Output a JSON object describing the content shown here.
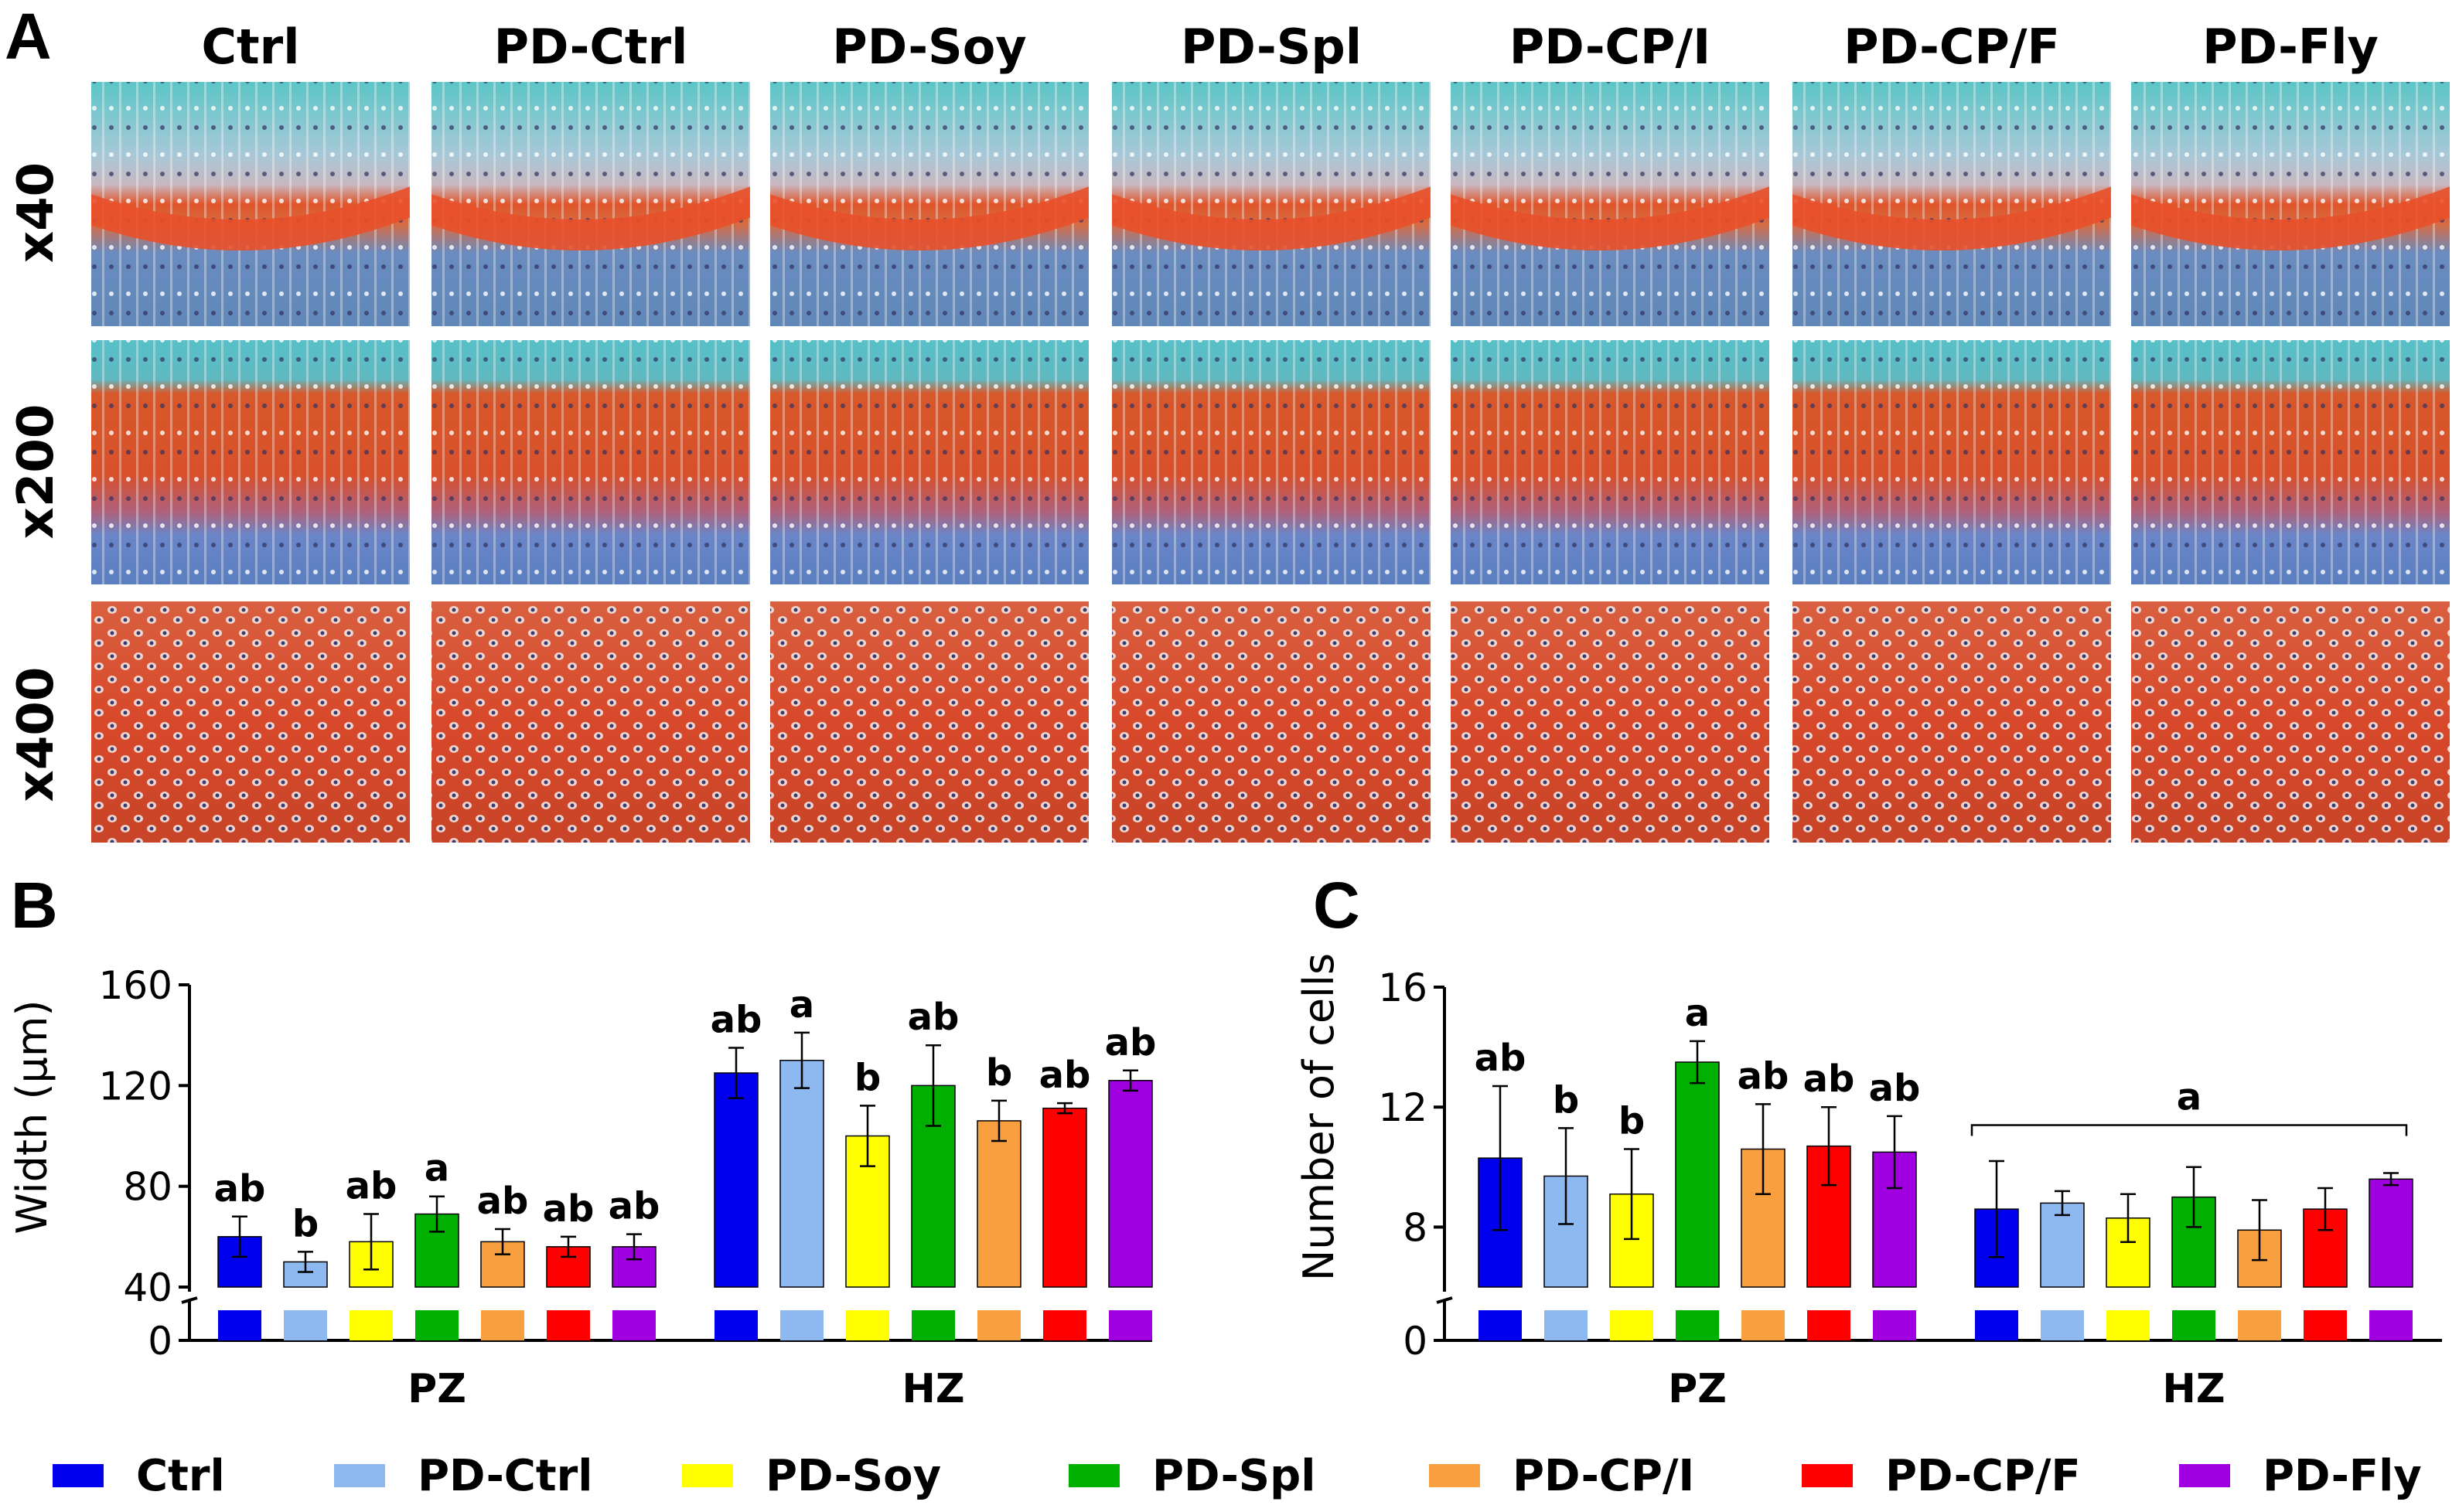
{
  "panel_a": {
    "letter": "A",
    "columns": [
      "Ctrl",
      "PD-Ctrl",
      "PD-Soy",
      "PD-Spl",
      "PD-CP/I",
      "PD-CP/F",
      "PD-Fly"
    ],
    "rows": [
      "x40",
      "x200",
      "x400"
    ]
  },
  "legend": {
    "items": [
      {
        "label": "Ctrl",
        "color": "#0000ee"
      },
      {
        "label": "PD-Ctrl",
        "color": "#8db9f0"
      },
      {
        "label": "PD-Soy",
        "color": "#ffff00"
      },
      {
        "label": "PD-Spl",
        "color": "#00b000"
      },
      {
        "label": "PD-CP/I",
        "color": "#f8a040"
      },
      {
        "label": "PD-CP/F",
        "color": "#ff0000"
      },
      {
        "label": "PD-Fly",
        "color": "#a000e0"
      }
    ]
  },
  "chart_data": [
    {
      "panel": "B",
      "type": "bar",
      "ylabel": "Width (µm)",
      "ylim": [
        40,
        160
      ],
      "axis_break": true,
      "yticks": [
        "0",
        "40",
        "80",
        "120",
        "160"
      ],
      "categories": [
        "PZ",
        "HZ"
      ],
      "series": [
        {
          "name": "Ctrl",
          "values": [
            60,
            125
          ],
          "errors": [
            8,
            10
          ],
          "sig": [
            "ab",
            "ab"
          ]
        },
        {
          "name": "PD-Ctrl",
          "values": [
            50,
            130
          ],
          "errors": [
            4,
            11
          ],
          "sig": [
            "b",
            "a"
          ]
        },
        {
          "name": "PD-Soy",
          "values": [
            58,
            100
          ],
          "errors": [
            11,
            12
          ],
          "sig": [
            "ab",
            "b"
          ]
        },
        {
          "name": "PD-Spl",
          "values": [
            69,
            120
          ],
          "errors": [
            7,
            16
          ],
          "sig": [
            "a",
            "ab"
          ]
        },
        {
          "name": "PD-CP/I",
          "values": [
            58,
            106
          ],
          "errors": [
            5,
            8
          ],
          "sig": [
            "ab",
            "b"
          ]
        },
        {
          "name": "PD-CP/F",
          "values": [
            56,
            111
          ],
          "errors": [
            4,
            2
          ],
          "sig": [
            "ab",
            "ab"
          ]
        },
        {
          "name": "PD-Fly",
          "values": [
            56,
            122
          ],
          "errors": [
            5,
            4
          ],
          "sig": [
            "ab",
            "ab"
          ]
        }
      ]
    },
    {
      "panel": "C",
      "type": "bar",
      "ylabel": "Number of cells",
      "ylim": [
        6,
        16
      ],
      "axis_break": true,
      "yticks": [
        "0",
        "8",
        "12",
        "16"
      ],
      "categories": [
        "PZ",
        "HZ"
      ],
      "series": [
        {
          "name": "Ctrl",
          "values": [
            10.3,
            8.6
          ],
          "errors": [
            2.4,
            1.6
          ],
          "sig": [
            "ab",
            ""
          ]
        },
        {
          "name": "PD-Ctrl",
          "values": [
            9.7,
            8.8
          ],
          "errors": [
            1.6,
            0.4
          ],
          "sig": [
            "b",
            ""
          ]
        },
        {
          "name": "PD-Soy",
          "values": [
            9.1,
            8.3
          ],
          "errors": [
            1.5,
            0.8
          ],
          "sig": [
            "b",
            ""
          ]
        },
        {
          "name": "PD-Spl",
          "values": [
            13.5,
            9.0
          ],
          "errors": [
            0.7,
            1.0
          ],
          "sig": [
            "a",
            ""
          ]
        },
        {
          "name": "PD-CP/I",
          "values": [
            10.6,
            7.9
          ],
          "errors": [
            1.5,
            1.0
          ],
          "sig": [
            "ab",
            ""
          ]
        },
        {
          "name": "PD-CP/F",
          "values": [
            10.7,
            8.6
          ],
          "errors": [
            1.3,
            0.7
          ],
          "sig": [
            "ab",
            ""
          ]
        },
        {
          "name": "PD-Fly",
          "values": [
            10.5,
            9.6
          ],
          "errors": [
            1.2,
            0.2
          ],
          "sig": [
            "ab",
            ""
          ]
        }
      ],
      "bracket_label": "a"
    }
  ]
}
